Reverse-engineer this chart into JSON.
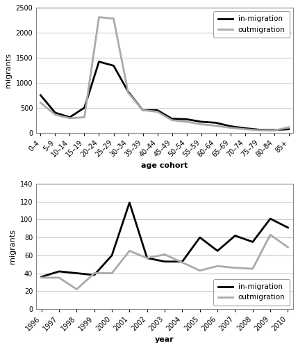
{
  "upper": {
    "age_cohorts": [
      "0–4",
      "5–9",
      "10–14",
      "15–19",
      "20–24",
      "25–29",
      "30–34",
      "35–39",
      "40–44",
      "45–49",
      "50–54",
      "55–59",
      "60–64",
      "65–69",
      "70–74",
      "75–79",
      "80–84",
      "85+"
    ],
    "inmigration": [
      750,
      400,
      310,
      500,
      1420,
      1340,
      820,
      450,
      450,
      280,
      270,
      220,
      200,
      130,
      90,
      60,
      55,
      70
    ],
    "outmigration": [
      600,
      360,
      290,
      310,
      2310,
      2280,
      800,
      450,
      420,
      250,
      220,
      170,
      140,
      100,
      70,
      50,
      45,
      110
    ]
  },
  "lower": {
    "years": [
      1996,
      1997,
      1998,
      1999,
      2000,
      2001,
      2002,
      2003,
      2004,
      2005,
      2006,
      2007,
      2008,
      2009,
      2010
    ],
    "inmigration": [
      36,
      42,
      40,
      38,
      60,
      119,
      57,
      53,
      53,
      80,
      65,
      82,
      75,
      101,
      91
    ],
    "outmigration": [
      35,
      35,
      22,
      40,
      40,
      65,
      57,
      61,
      52,
      43,
      48,
      46,
      45,
      83,
      69
    ]
  },
  "inmigration_color": "#000000",
  "outmigration_color": "#aaaaaa",
  "linewidth": 2.0,
  "background_color": "#ffffff",
  "upper_ylim": [
    0,
    2500
  ],
  "upper_yticks": [
    0,
    500,
    1000,
    1500,
    2000,
    2500
  ],
  "lower_ylim": [
    0,
    140
  ],
  "lower_yticks": [
    0,
    20,
    40,
    60,
    80,
    100,
    120,
    140
  ],
  "upper_ylabel": "migrants",
  "lower_ylabel": "migrants",
  "upper_xlabel": "age cohort",
  "lower_xlabel": "year",
  "tick_fontsize": 7,
  "label_fontsize": 8,
  "legend_fontsize": 7.5
}
